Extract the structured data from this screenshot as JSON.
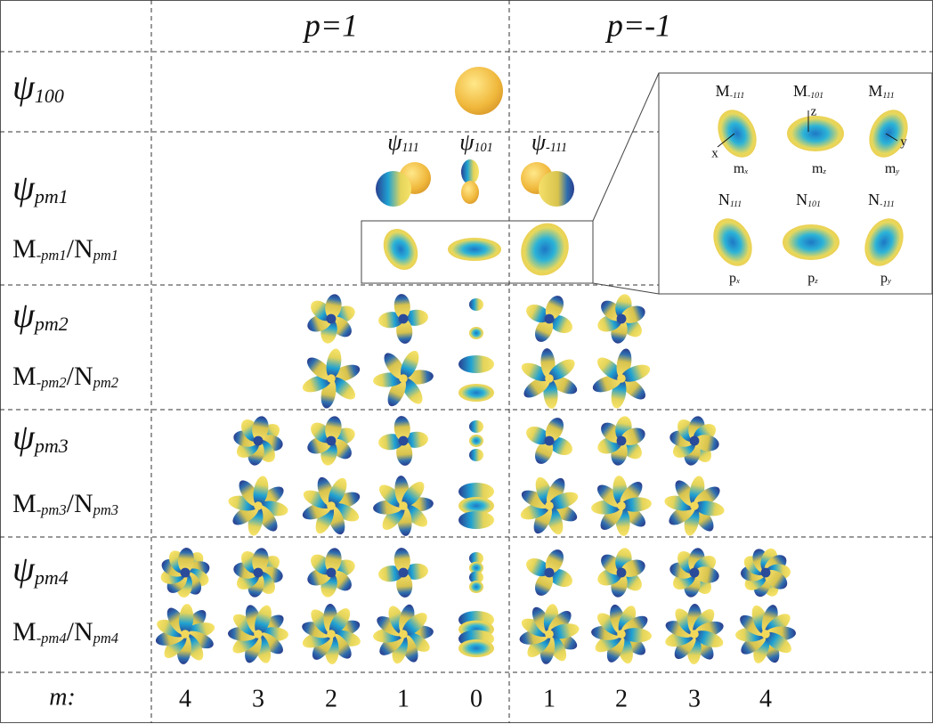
{
  "header": {
    "left": "p=1",
    "right": "p=-1"
  },
  "rows": [
    {
      "base": "ψ",
      "sub": "100"
    },
    {
      "base": "ψ",
      "sub": "pm1"
    },
    {
      "base": "M",
      "sub": "-pm1",
      "base2": "/N",
      "sub2": "pm1"
    },
    {
      "base": "ψ",
      "sub": "pm2"
    },
    {
      "base": "M",
      "sub": "-pm2",
      "base2": "/N",
      "sub2": "pm2"
    },
    {
      "base": "ψ",
      "sub": "pm3"
    },
    {
      "base": "M",
      "sub": "-pm3",
      "base2": "/N",
      "sub2": "pm3"
    },
    {
      "base": "ψ",
      "sub": "pm4"
    },
    {
      "base": "M",
      "sub": "-pm4",
      "base2": "/N",
      "sub2": "pm4"
    }
  ],
  "n1_labels": [
    {
      "base": "ψ",
      "sub": "111"
    },
    {
      "base": "ψ",
      "sub": "101"
    },
    {
      "base": "ψ",
      "sub": "-111"
    }
  ],
  "m_row": {
    "label": "m:",
    "values": [
      4,
      3,
      2,
      1,
      0,
      1,
      2,
      3,
      4
    ]
  },
  "inset": {
    "top": [
      {
        "base": "M",
        "sub": "-111"
      },
      {
        "base": "M",
        "sub": "-101"
      },
      {
        "base": "M",
        "sub": "111"
      }
    ],
    "top_caps": [
      {
        "base": "m",
        "sub": "x"
      },
      {
        "base": "m",
        "sub": "z"
      },
      {
        "base": "m",
        "sub": "y"
      }
    ],
    "bottom": [
      {
        "base": "N",
        "sub": "111"
      },
      {
        "base": "N",
        "sub": "101"
      },
      {
        "base": "N",
        "sub": "-111"
      }
    ],
    "bottom_caps": [
      {
        "base": "p",
        "sub": "x"
      },
      {
        "base": "p",
        "sub": "z"
      },
      {
        "base": "p",
        "sub": "y"
      }
    ],
    "axes": [
      "x",
      "z",
      "y"
    ]
  }
}
